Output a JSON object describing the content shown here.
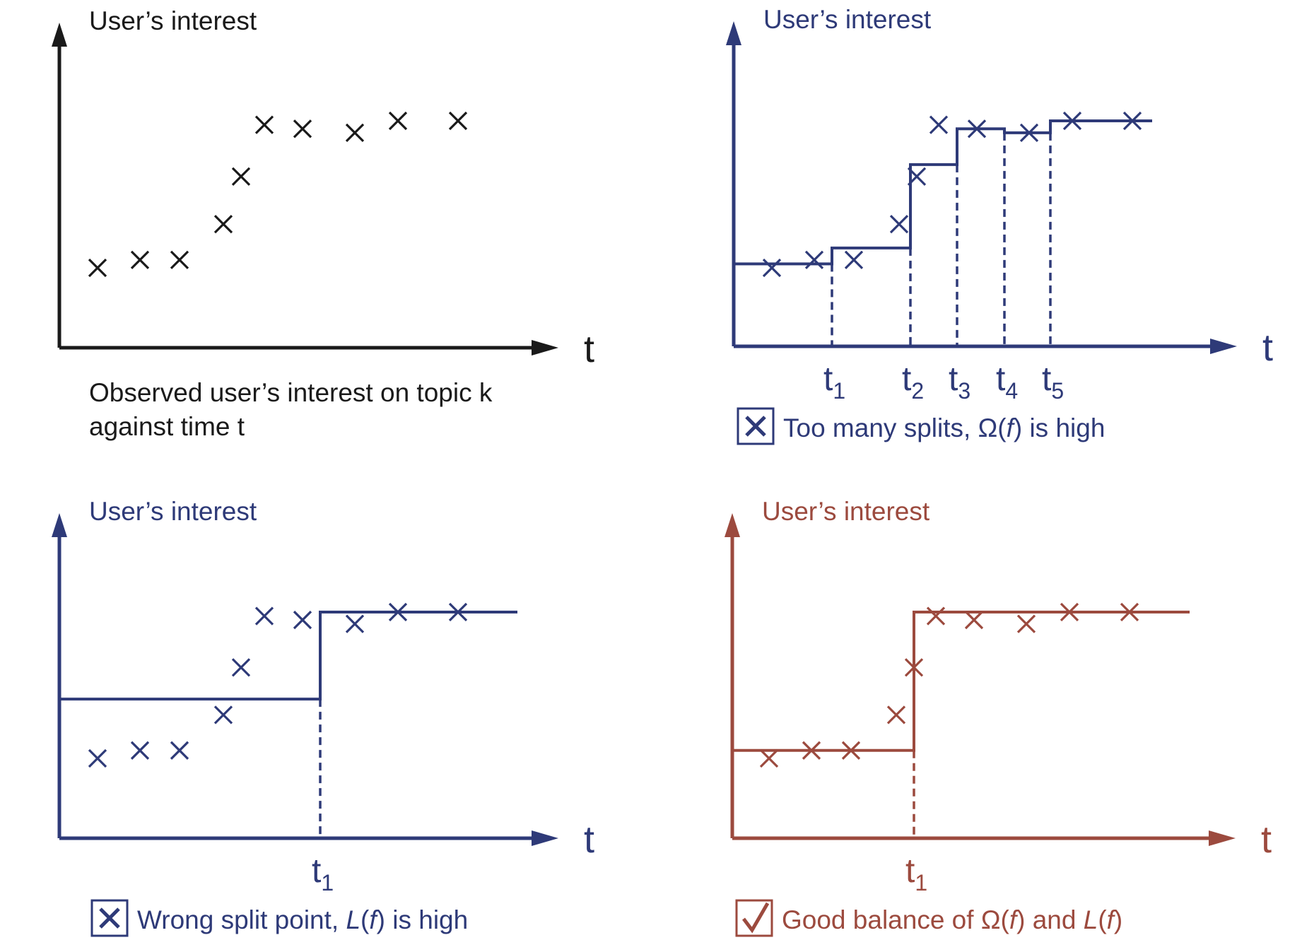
{
  "colors": {
    "black": "#1a1a1a",
    "blue": "#2e3a78",
    "red": "#9c4a3e"
  },
  "chart_data": [
    {
      "type": "scatter",
      "ylabel": "User’s interest",
      "xlabel": "t",
      "caption_lines": [
        "Observed user’s interest on topic k",
        "against time t"
      ],
      "points": [
        [
          1,
          3.1
        ],
        [
          2,
          3.3
        ],
        [
          3,
          3.3
        ],
        [
          4,
          4.2
        ],
        [
          5,
          5.4
        ],
        [
          6,
          6.7
        ],
        [
          7,
          6.6
        ],
        [
          8,
          6.5
        ],
        [
          9,
          6.8
        ],
        [
          10,
          6.8
        ]
      ],
      "step": null,
      "splits": []
    },
    {
      "type": "scatter",
      "ylabel": "User’s interest",
      "xlabel": "t",
      "caption_mark": "cross",
      "caption": {
        "pre": "Too many splits, ",
        "sym": "Ω",
        "arg": "f",
        "post": " is high"
      },
      "points": [
        [
          1,
          3.1
        ],
        [
          2,
          3.3
        ],
        [
          3,
          3.3
        ],
        [
          4,
          4.2
        ],
        [
          5,
          5.4
        ],
        [
          6,
          6.7
        ],
        [
          7,
          6.6
        ],
        [
          8,
          6.5
        ],
        [
          9,
          6.8
        ],
        [
          10,
          6.8
        ]
      ],
      "step": [
        [
          0,
          3.2
        ],
        [
          2.4,
          3.6
        ],
        [
          4.3,
          5.7
        ],
        [
          5.4,
          6.6
        ],
        [
          6.5,
          6.5
        ],
        [
          7.6,
          6.8
        ],
        [
          10.5,
          6.8
        ]
      ],
      "splits": [
        {
          "x": 2.4,
          "label": "t",
          "sub": "1"
        },
        {
          "x": 4.3,
          "label": "t",
          "sub": "2"
        },
        {
          "x": 5.4,
          "label": "t",
          "sub": "3"
        },
        {
          "x": 6.5,
          "label": "t",
          "sub": "4"
        },
        {
          "x": 7.6,
          "label": "t",
          "sub": "5"
        }
      ]
    },
    {
      "type": "scatter",
      "ylabel": "User’s interest",
      "xlabel": "t",
      "caption_mark": "cross",
      "caption": {
        "pre": "Wrong split point, ",
        "sym": "L",
        "arg": "f",
        "post": " is high"
      },
      "points": [
        [
          1,
          3.1
        ],
        [
          2,
          3.3
        ],
        [
          3,
          3.3
        ],
        [
          4,
          4.2
        ],
        [
          5,
          5.4
        ],
        [
          6,
          6.7
        ],
        [
          7,
          6.6
        ],
        [
          8,
          6.5
        ],
        [
          9,
          6.8
        ],
        [
          10,
          6.8
        ]
      ],
      "step": [
        [
          0,
          4.6
        ],
        [
          6.5,
          6.8
        ],
        [
          11.3,
          6.8
        ]
      ],
      "splits": [
        {
          "x": 6.5,
          "label": "t",
          "sub": "1"
        }
      ]
    },
    {
      "type": "scatter",
      "ylabel": "User’s interest",
      "xlabel": "t",
      "caption_mark": "check",
      "caption": {
        "pre": "Good balance of ",
        "sym": "Ω",
        "arg": "f",
        "mid": " and ",
        "sym2": "L",
        "arg2": "f",
        "post": ""
      },
      "points": [
        [
          1,
          3.1
        ],
        [
          2,
          3.3
        ],
        [
          3,
          3.3
        ],
        [
          4,
          4.2
        ],
        [
          5,
          5.4
        ],
        [
          6,
          6.7
        ],
        [
          7,
          6.6
        ],
        [
          8,
          6.5
        ],
        [
          9,
          6.8
        ],
        [
          10,
          6.8
        ]
      ],
      "step": [
        [
          0,
          3.3
        ],
        [
          4.6,
          6.8
        ],
        [
          11.3,
          6.8
        ]
      ],
      "splits": [
        {
          "x": 4.6,
          "label": "t",
          "sub": "1"
        }
      ]
    }
  ]
}
